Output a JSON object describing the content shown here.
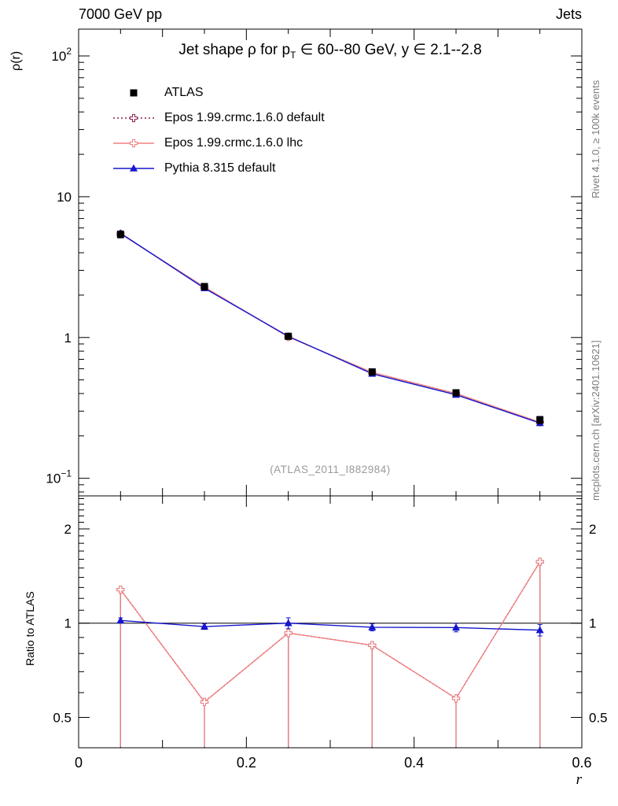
{
  "header": {
    "left": "7000 GeV pp",
    "right": "Jets"
  },
  "title": {
    "pre": "Jet shape ρ for p",
    "sub": "T",
    "post": " ∈ 60--80 GeV, y ∈ 2.1--2.8"
  },
  "watermark": "(ATLAS_2011_I882984)",
  "side_notes": {
    "top": "Rivet 4.1.0, ≥ 100k events",
    "bottom": "mcplots.cern.ch [arXiv:2401.10621]"
  },
  "axes": {
    "x_label": "r",
    "y_label_top": "ρ(r)",
    "y_label_ratio": "Ratio to ATLAS",
    "x_ticks": [
      {
        "v": 0,
        "label": "0"
      },
      {
        "v": 0.2,
        "label": "0.2"
      },
      {
        "v": 0.4,
        "label": "0.4"
      },
      {
        "v": 0.6,
        "label": "0.6"
      }
    ],
    "top_y_ticks": [
      {
        "v": 100,
        "label": "10",
        "exp": "2"
      },
      {
        "v": 10,
        "label": "10"
      },
      {
        "v": 1,
        "label": "1"
      },
      {
        "v": 0.1,
        "label": "10",
        "exp": "−1"
      }
    ],
    "ratio_y_ticks": [
      {
        "v": 2,
        "label": "2"
      },
      {
        "v": 1,
        "label": "1"
      },
      {
        "v": 0.5,
        "label": "0.5"
      }
    ]
  },
  "chart_data": {
    "type": "line",
    "title": "Jet shape ρ for pT ∈ 60--80 GeV, y ∈ 2.1--2.8",
    "xlabel": "r",
    "ylabel": "ρ(r)",
    "ratio_ylabel": "Ratio to ATLAS",
    "x": [
      0.05,
      0.15,
      0.25,
      0.35,
      0.45,
      0.55
    ],
    "xlim": [
      0,
      0.6
    ],
    "top_ylim": [
      0.075,
      155
    ],
    "top_yscale": "log",
    "ratio_ylim": [
      0.4,
      2.55
    ],
    "ratio_yscale": "log",
    "grid": false,
    "legend_position": "top-left-inside",
    "series": [
      {
        "name": "ATLAS",
        "color": "#000000",
        "marker": "square",
        "values": [
          5.4,
          2.3,
          1.02,
          0.57,
          0.405,
          0.26
        ],
        "errors": [
          0.3,
          0.12,
          0.05,
          0.03,
          0.02,
          0.015
        ]
      },
      {
        "name": "Epos 1.99.crmc.1.6.0 default",
        "color": "#8b2252",
        "line": "dotted",
        "marker": "opencross",
        "values": [
          5.45,
          2.28,
          1.01,
          0.565,
          0.4,
          0.25
        ],
        "ratio": [
          1.28,
          0.56,
          0.93,
          0.85,
          0.575,
          1.57
        ],
        "ratio_err_to_bottom": true
      },
      {
        "name": "Epos 1.99.crmc.1.6.0 lhc",
        "color": "#f08080",
        "line": "solid",
        "marker": "opencross",
        "values": [
          5.45,
          2.28,
          1.01,
          0.565,
          0.4,
          0.25
        ],
        "ratio": [
          1.28,
          0.56,
          0.93,
          0.85,
          0.575,
          1.57
        ],
        "ratio_err_to_bottom": true
      },
      {
        "name": "Pythia 8.315 default",
        "color": "#1515cd",
        "line": "solid",
        "marker": "triangle",
        "values": [
          5.5,
          2.24,
          1.02,
          0.553,
          0.392,
          0.247
        ],
        "ratio": [
          1.02,
          0.975,
          1.0,
          0.97,
          0.968,
          0.95
        ],
        "ratio_errors": [
          0.02,
          0.02,
          0.04,
          0.025,
          0.03,
          0.04
        ]
      }
    ]
  }
}
